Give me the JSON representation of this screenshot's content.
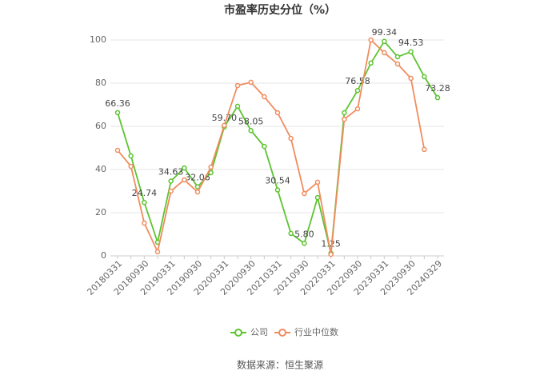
{
  "chart_data": {
    "type": "line",
    "title": "市盈率历史分位（%）",
    "categories": [
      "20180331",
      null,
      "20180930",
      null,
      "20190331",
      null,
      "20190930",
      null,
      "20200331",
      null,
      "20200930",
      null,
      "20210331",
      null,
      "20210930",
      null,
      "20220331",
      null,
      "20220930",
      null,
      "20230331",
      null,
      "20230930",
      null,
      "20240329"
    ],
    "series": [
      {
        "name": "公司",
        "color": "#5cc42f",
        "values": [
          66.36,
          46.3,
          24.74,
          6.3,
          34.63,
          40.7,
          32.06,
          38.5,
          59.7,
          69.3,
          58.05,
          50.7,
          30.54,
          10.4,
          5.8,
          27.0,
          1.25,
          66.3,
          76.58,
          89.3,
          99.34,
          92.2,
          94.53,
          83.0,
          73.28
        ],
        "value_labels": [
          "66.36",
          null,
          "24.74",
          null,
          "34.63",
          null,
          "32.06",
          null,
          "59.70",
          null,
          "58.05",
          null,
          "30.54",
          null,
          "5.80",
          null,
          "1.25",
          null,
          "76.58",
          null,
          "99.34",
          null,
          "94.53",
          null,
          "73.28"
        ]
      },
      {
        "name": "行业中位数",
        "color": "#f08c5e",
        "values": [
          48.9,
          41.5,
          15.2,
          1.9,
          30.0,
          35.2,
          29.6,
          41.1,
          60.4,
          78.9,
          80.4,
          73.7,
          66.3,
          54.4,
          28.9,
          34.1,
          0.7,
          63.3,
          68.1,
          100.0,
          94.1,
          88.9,
          82.2,
          49.3,
          null
        ]
      }
    ],
    "ylim": [
      0,
      100
    ],
    "yticks": [
      0,
      20,
      40,
      60,
      80,
      100
    ],
    "grid": true,
    "source": "数据来源：恒生聚源"
  }
}
